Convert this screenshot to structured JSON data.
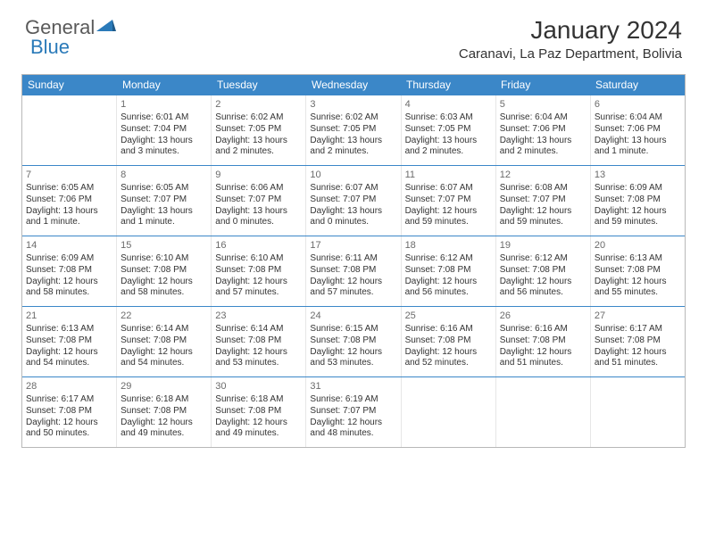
{
  "logo": {
    "general": "General",
    "blue": "Blue"
  },
  "header": {
    "title": "January 2024",
    "location": "Caranavi, La Paz Department, Bolivia"
  },
  "colors": {
    "header_bg": "#3b87c8",
    "header_text": "#ffffff",
    "cell_border": "#e6e6e6",
    "week_border": "#3b87c8",
    "text": "#333333",
    "daynum": "#6b6b6b",
    "logo_gray": "#5a5a5a",
    "logo_blue": "#2a7ab9"
  },
  "day_names": [
    "Sunday",
    "Monday",
    "Tuesday",
    "Wednesday",
    "Thursday",
    "Friday",
    "Saturday"
  ],
  "weeks": [
    [
      null,
      {
        "n": "1",
        "sr": "Sunrise: 6:01 AM",
        "ss": "Sunset: 7:04 PM",
        "dl": "Daylight: 13 hours and 3 minutes."
      },
      {
        "n": "2",
        "sr": "Sunrise: 6:02 AM",
        "ss": "Sunset: 7:05 PM",
        "dl": "Daylight: 13 hours and 2 minutes."
      },
      {
        "n": "3",
        "sr": "Sunrise: 6:02 AM",
        "ss": "Sunset: 7:05 PM",
        "dl": "Daylight: 13 hours and 2 minutes."
      },
      {
        "n": "4",
        "sr": "Sunrise: 6:03 AM",
        "ss": "Sunset: 7:05 PM",
        "dl": "Daylight: 13 hours and 2 minutes."
      },
      {
        "n": "5",
        "sr": "Sunrise: 6:04 AM",
        "ss": "Sunset: 7:06 PM",
        "dl": "Daylight: 13 hours and 2 minutes."
      },
      {
        "n": "6",
        "sr": "Sunrise: 6:04 AM",
        "ss": "Sunset: 7:06 PM",
        "dl": "Daylight: 13 hours and 1 minute."
      }
    ],
    [
      {
        "n": "7",
        "sr": "Sunrise: 6:05 AM",
        "ss": "Sunset: 7:06 PM",
        "dl": "Daylight: 13 hours and 1 minute."
      },
      {
        "n": "8",
        "sr": "Sunrise: 6:05 AM",
        "ss": "Sunset: 7:07 PM",
        "dl": "Daylight: 13 hours and 1 minute."
      },
      {
        "n": "9",
        "sr": "Sunrise: 6:06 AM",
        "ss": "Sunset: 7:07 PM",
        "dl": "Daylight: 13 hours and 0 minutes."
      },
      {
        "n": "10",
        "sr": "Sunrise: 6:07 AM",
        "ss": "Sunset: 7:07 PM",
        "dl": "Daylight: 13 hours and 0 minutes."
      },
      {
        "n": "11",
        "sr": "Sunrise: 6:07 AM",
        "ss": "Sunset: 7:07 PM",
        "dl": "Daylight: 12 hours and 59 minutes."
      },
      {
        "n": "12",
        "sr": "Sunrise: 6:08 AM",
        "ss": "Sunset: 7:07 PM",
        "dl": "Daylight: 12 hours and 59 minutes."
      },
      {
        "n": "13",
        "sr": "Sunrise: 6:09 AM",
        "ss": "Sunset: 7:08 PM",
        "dl": "Daylight: 12 hours and 59 minutes."
      }
    ],
    [
      {
        "n": "14",
        "sr": "Sunrise: 6:09 AM",
        "ss": "Sunset: 7:08 PM",
        "dl": "Daylight: 12 hours and 58 minutes."
      },
      {
        "n": "15",
        "sr": "Sunrise: 6:10 AM",
        "ss": "Sunset: 7:08 PM",
        "dl": "Daylight: 12 hours and 58 minutes."
      },
      {
        "n": "16",
        "sr": "Sunrise: 6:10 AM",
        "ss": "Sunset: 7:08 PM",
        "dl": "Daylight: 12 hours and 57 minutes."
      },
      {
        "n": "17",
        "sr": "Sunrise: 6:11 AM",
        "ss": "Sunset: 7:08 PM",
        "dl": "Daylight: 12 hours and 57 minutes."
      },
      {
        "n": "18",
        "sr": "Sunrise: 6:12 AM",
        "ss": "Sunset: 7:08 PM",
        "dl": "Daylight: 12 hours and 56 minutes."
      },
      {
        "n": "19",
        "sr": "Sunrise: 6:12 AM",
        "ss": "Sunset: 7:08 PM",
        "dl": "Daylight: 12 hours and 56 minutes."
      },
      {
        "n": "20",
        "sr": "Sunrise: 6:13 AM",
        "ss": "Sunset: 7:08 PM",
        "dl": "Daylight: 12 hours and 55 minutes."
      }
    ],
    [
      {
        "n": "21",
        "sr": "Sunrise: 6:13 AM",
        "ss": "Sunset: 7:08 PM",
        "dl": "Daylight: 12 hours and 54 minutes."
      },
      {
        "n": "22",
        "sr": "Sunrise: 6:14 AM",
        "ss": "Sunset: 7:08 PM",
        "dl": "Daylight: 12 hours and 54 minutes."
      },
      {
        "n": "23",
        "sr": "Sunrise: 6:14 AM",
        "ss": "Sunset: 7:08 PM",
        "dl": "Daylight: 12 hours and 53 minutes."
      },
      {
        "n": "24",
        "sr": "Sunrise: 6:15 AM",
        "ss": "Sunset: 7:08 PM",
        "dl": "Daylight: 12 hours and 53 minutes."
      },
      {
        "n": "25",
        "sr": "Sunrise: 6:16 AM",
        "ss": "Sunset: 7:08 PM",
        "dl": "Daylight: 12 hours and 52 minutes."
      },
      {
        "n": "26",
        "sr": "Sunrise: 6:16 AM",
        "ss": "Sunset: 7:08 PM",
        "dl": "Daylight: 12 hours and 51 minutes."
      },
      {
        "n": "27",
        "sr": "Sunrise: 6:17 AM",
        "ss": "Sunset: 7:08 PM",
        "dl": "Daylight: 12 hours and 51 minutes."
      }
    ],
    [
      {
        "n": "28",
        "sr": "Sunrise: 6:17 AM",
        "ss": "Sunset: 7:08 PM",
        "dl": "Daylight: 12 hours and 50 minutes."
      },
      {
        "n": "29",
        "sr": "Sunrise: 6:18 AM",
        "ss": "Sunset: 7:08 PM",
        "dl": "Daylight: 12 hours and 49 minutes."
      },
      {
        "n": "30",
        "sr": "Sunrise: 6:18 AM",
        "ss": "Sunset: 7:08 PM",
        "dl": "Daylight: 12 hours and 49 minutes."
      },
      {
        "n": "31",
        "sr": "Sunrise: 6:19 AM",
        "ss": "Sunset: 7:07 PM",
        "dl": "Daylight: 12 hours and 48 minutes."
      },
      null,
      null,
      null
    ]
  ]
}
